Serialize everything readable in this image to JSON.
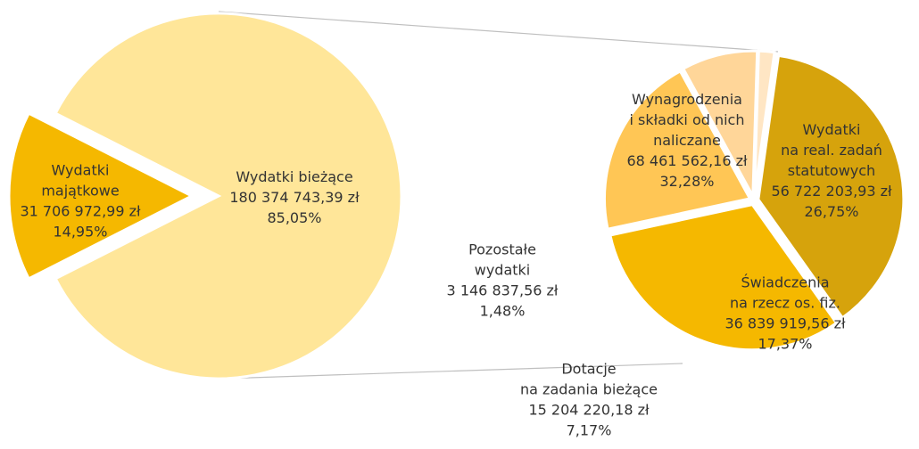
{
  "chart_data": {
    "type": "pie_of_pie",
    "pies": [
      {
        "categories": [
          "Wydatki\nmajątkowe",
          "Wydatki bieżące"
        ],
        "values": [
          31706972.99,
          180374743.39
        ],
        "value_labels": [
          "31 706 972,99 zł",
          "180 374 743,39 zł"
        ],
        "percents": [
          14.95,
          85.05
        ],
        "percent_labels": [
          "14,95%",
          "85,05%"
        ],
        "colors": [
          "#f5b800",
          "#ffe699"
        ]
      },
      {
        "categories": [
          "Wynagrodzenia\ni składki od nich\nnaliczane",
          "Wydatki\nna real. zadań\nstatutowych",
          "Świadczenia\nna rzecz os. fiz.",
          "Dotacje\nna zadania bieżące",
          "Pozostałe\nwydatki"
        ],
        "values": [
          68461562.16,
          56722203.93,
          36839919.56,
          15204220.18,
          3146837.56
        ],
        "value_labels": [
          "68 461 562,16 zł",
          "56 722 203,93 zł",
          "36 839 919,56 zł",
          "15 204 220,18 zł",
          "3 146 837,56 zł"
        ],
        "percents": [
          32.28,
          26.75,
          17.37,
          7.17,
          1.48
        ],
        "percent_labels": [
          "32,28%",
          "26,75%",
          "17,37%",
          "7,17%",
          "1,48%"
        ],
        "colors": [
          "#d6a30c",
          "#f5b800",
          "#ffc655",
          "#ffd699",
          "#ffe6c4"
        ]
      }
    ]
  }
}
